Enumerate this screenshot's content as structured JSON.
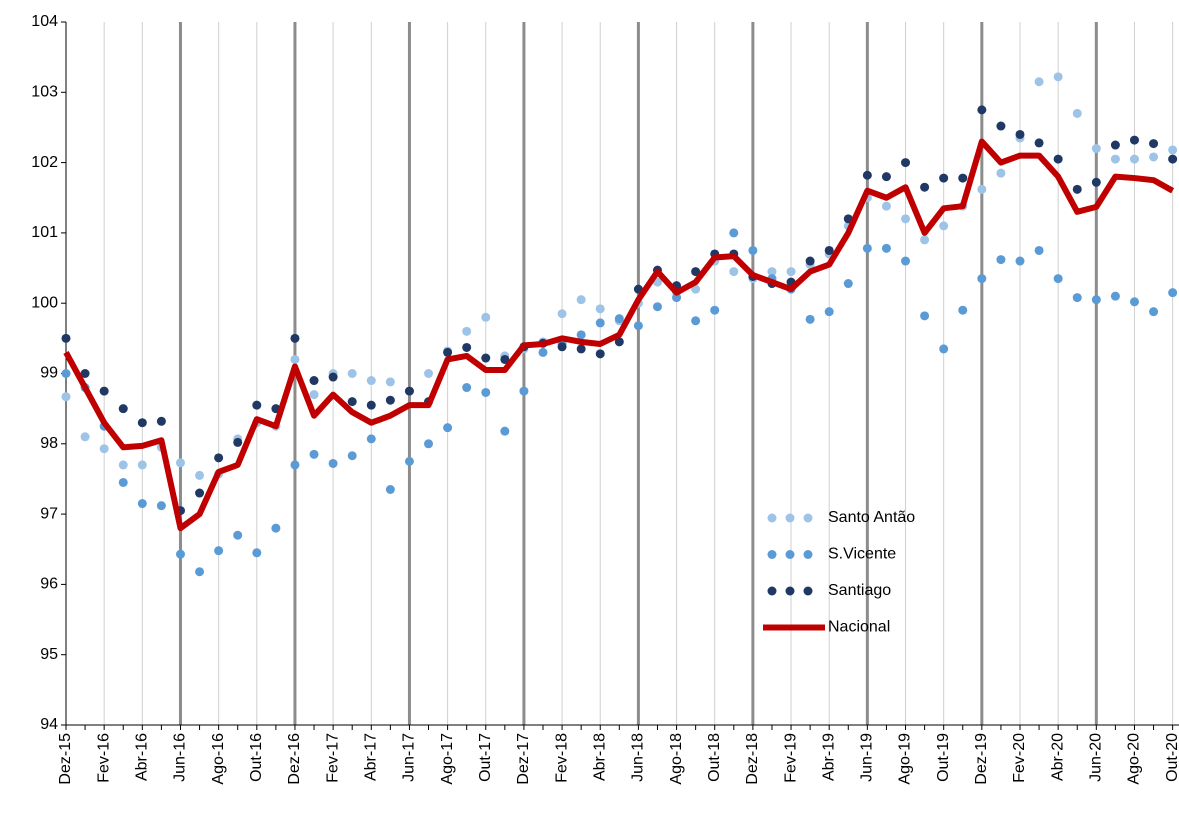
{
  "chart_data": {
    "type": "line",
    "categories": [
      "Dez-15",
      null,
      "Fev-16",
      null,
      "Abr-16",
      null,
      "Jun-16",
      null,
      "Ago-16",
      null,
      "Out-16",
      null,
      "Dez-16",
      null,
      "Fev-17",
      null,
      "Abr-17",
      null,
      "Jun-17",
      null,
      "Ago-17",
      null,
      "Out-17",
      null,
      "Dez-17",
      null,
      "Fev-18",
      null,
      "Abr-18",
      null,
      "Jun-18",
      null,
      "Ago-18",
      null,
      "Out-18",
      null,
      "Dez-18",
      null,
      "Fev-19",
      null,
      "Abr-19",
      null,
      "Jun-19",
      null,
      "Ago-19",
      null,
      "Out-19",
      null,
      "Dez-19",
      null,
      "Fev-20",
      null,
      "Abr-20",
      null,
      "Jun-20",
      null,
      "Ago-20",
      null,
      "Out-20"
    ],
    "series": [
      {
        "name": "Santo Antão",
        "color": "#9dc3e6",
        "style": "dots",
        "values": [
          98.67,
          98.1,
          97.93,
          97.7,
          97.7,
          97.95,
          97.73,
          97.55,
          97.57,
          98.07,
          98.3,
          98.25,
          99.2,
          98.7,
          99.0,
          99.0,
          98.9,
          98.88,
          98.75,
          99.0,
          99.32,
          99.6,
          99.8,
          99.25,
          99.35,
          99.45,
          99.85,
          100.05,
          99.92,
          99.75,
          100.0,
          100.3,
          100.15,
          100.2,
          100.6,
          100.45,
          100.35,
          100.45,
          100.45,
          100.55,
          100.7,
          101.1,
          101.5,
          101.38,
          101.2,
          100.9,
          101.1,
          101.38,
          101.62,
          101.85,
          102.35,
          103.15,
          103.22,
          102.7,
          102.2,
          102.05,
          102.05,
          102.08,
          102.18
        ]
      },
      {
        "name": "S.Vicente",
        "color": "#5b9bd5",
        "style": "dots",
        "values": [
          99.0,
          98.8,
          98.25,
          97.45,
          97.15,
          97.12,
          96.43,
          96.18,
          96.48,
          96.7,
          96.45,
          96.8,
          97.7,
          97.85,
          97.72,
          97.83,
          98.07,
          97.35,
          97.75,
          98.0,
          98.23,
          98.8,
          98.73,
          98.18,
          98.75,
          99.3,
          99.42,
          99.55,
          99.72,
          99.78,
          99.68,
          99.95,
          100.08,
          99.75,
          99.9,
          101.0,
          100.75,
          100.35,
          100.2,
          99.77,
          99.88,
          100.28,
          100.78,
          100.78,
          100.6,
          99.82,
          99.35,
          99.9,
          100.35,
          100.62,
          100.6,
          100.75,
          100.35,
          100.08,
          100.05,
          100.1,
          100.02,
          99.88,
          100.15
        ]
      },
      {
        "name": "Santiago",
        "color": "#1f3864",
        "style": "dots",
        "values": [
          99.5,
          99.0,
          98.75,
          98.5,
          98.3,
          98.32,
          97.05,
          97.3,
          97.8,
          98.02,
          98.55,
          98.5,
          99.5,
          98.9,
          98.95,
          98.6,
          98.55,
          98.62,
          98.75,
          98.6,
          99.3,
          99.37,
          99.22,
          99.2,
          99.38,
          99.43,
          99.38,
          99.35,
          99.28,
          99.45,
          100.2,
          100.47,
          100.25,
          100.45,
          100.7,
          100.7,
          100.38,
          100.28,
          100.3,
          100.6,
          100.75,
          101.2,
          101.82,
          101.8,
          102.0,
          101.65,
          101.78,
          101.78,
          102.75,
          102.52,
          102.4,
          102.28,
          102.05,
          101.62,
          101.72,
          102.25,
          102.32,
          102.27,
          102.05
        ]
      },
      {
        "name": "Nacional",
        "color": "#c00000",
        "style": "line",
        "values": [
          99.3,
          98.8,
          98.3,
          97.95,
          97.97,
          98.05,
          96.8,
          97.0,
          97.6,
          97.7,
          98.35,
          98.25,
          99.1,
          98.4,
          98.7,
          98.45,
          98.3,
          98.4,
          98.55,
          98.55,
          99.2,
          99.25,
          99.05,
          99.05,
          99.4,
          99.42,
          99.5,
          99.45,
          99.42,
          99.55,
          100.05,
          100.45,
          100.15,
          100.3,
          100.65,
          100.67,
          100.4,
          100.3,
          100.2,
          100.45,
          100.55,
          101.0,
          101.6,
          101.5,
          101.65,
          101.0,
          101.35,
          101.38,
          102.3,
          102.0,
          102.1,
          102.1,
          101.8,
          101.3,
          101.37,
          101.8,
          101.78,
          101.75,
          101.6
        ]
      }
    ],
    "ylim": [
      94,
      104
    ],
    "yticks": [
      94,
      95,
      96,
      97,
      98,
      99,
      100,
      101,
      102,
      103,
      104
    ],
    "xgrid": true,
    "legend": "center-right"
  }
}
